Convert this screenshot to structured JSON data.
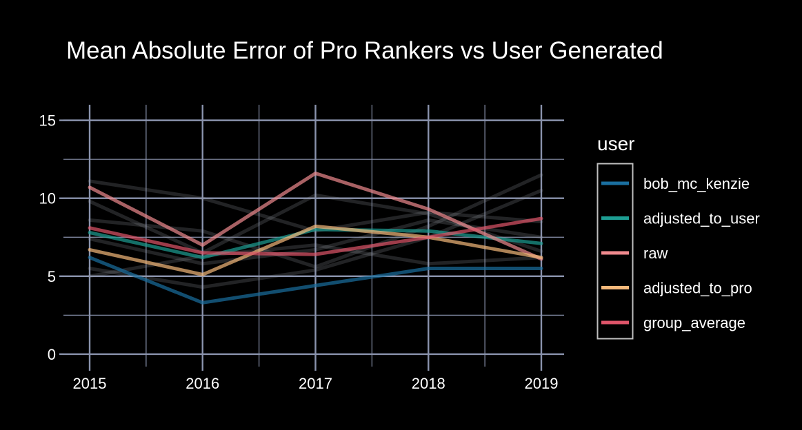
{
  "chart_data": {
    "type": "line",
    "title": "Mean Absolute Error of Pro Rankers vs User Generated",
    "xlabel": "",
    "ylabel": "",
    "x": [
      2015,
      2016,
      2017,
      2018,
      2019
    ],
    "x_tick_labels": [
      "2015",
      "2016",
      "2017",
      "2018",
      "2019"
    ],
    "xlim": [
      2014.9,
      2019.2
    ],
    "ylim": [
      -0.8,
      16
    ],
    "y_ticks": [
      0,
      5,
      10,
      15
    ],
    "y_tick_labels": [
      "0",
      "5",
      "10",
      "15"
    ],
    "grid": true,
    "legend": {
      "title": "user",
      "placement": "right"
    },
    "series": [
      {
        "name": "bob_mc_kenzie",
        "color": "#1a6fa0",
        "values": [
          6.2,
          3.3,
          4.4,
          5.5,
          5.5
        ]
      },
      {
        "name": "adjusted_to_user",
        "color": "#1d9e93",
        "values": [
          7.8,
          6.2,
          8.0,
          7.9,
          7.1
        ]
      },
      {
        "name": "raw",
        "color": "#f08a8e",
        "values": [
          10.7,
          7.0,
          11.6,
          9.3,
          6.1
        ]
      },
      {
        "name": "adjusted_to_pro",
        "color": "#f5b97b",
        "values": [
          6.7,
          5.1,
          8.2,
          7.5,
          6.2
        ]
      },
      {
        "name": "group_average",
        "color": "#e0556a",
        "values": [
          8.1,
          6.5,
          6.4,
          7.5,
          8.7
        ]
      }
    ],
    "background_series": [
      {
        "values": [
          11.1,
          10.0,
          7.9,
          9.1,
          8.5
        ]
      },
      {
        "values": [
          9.8,
          6.5,
          10.2,
          9.0,
          6.6
        ]
      },
      {
        "values": [
          8.6,
          7.9,
          5.6,
          8.2,
          11.5
        ]
      },
      {
        "values": [
          5.5,
          4.3,
          5.4,
          7.5,
          10.5
        ]
      },
      {
        "values": [
          5.0,
          6.3,
          7.0,
          5.8,
          6.2
        ]
      },
      {
        "values": [
          7.4,
          5.8,
          6.7,
          8.6,
          7.5
        ]
      }
    ]
  }
}
